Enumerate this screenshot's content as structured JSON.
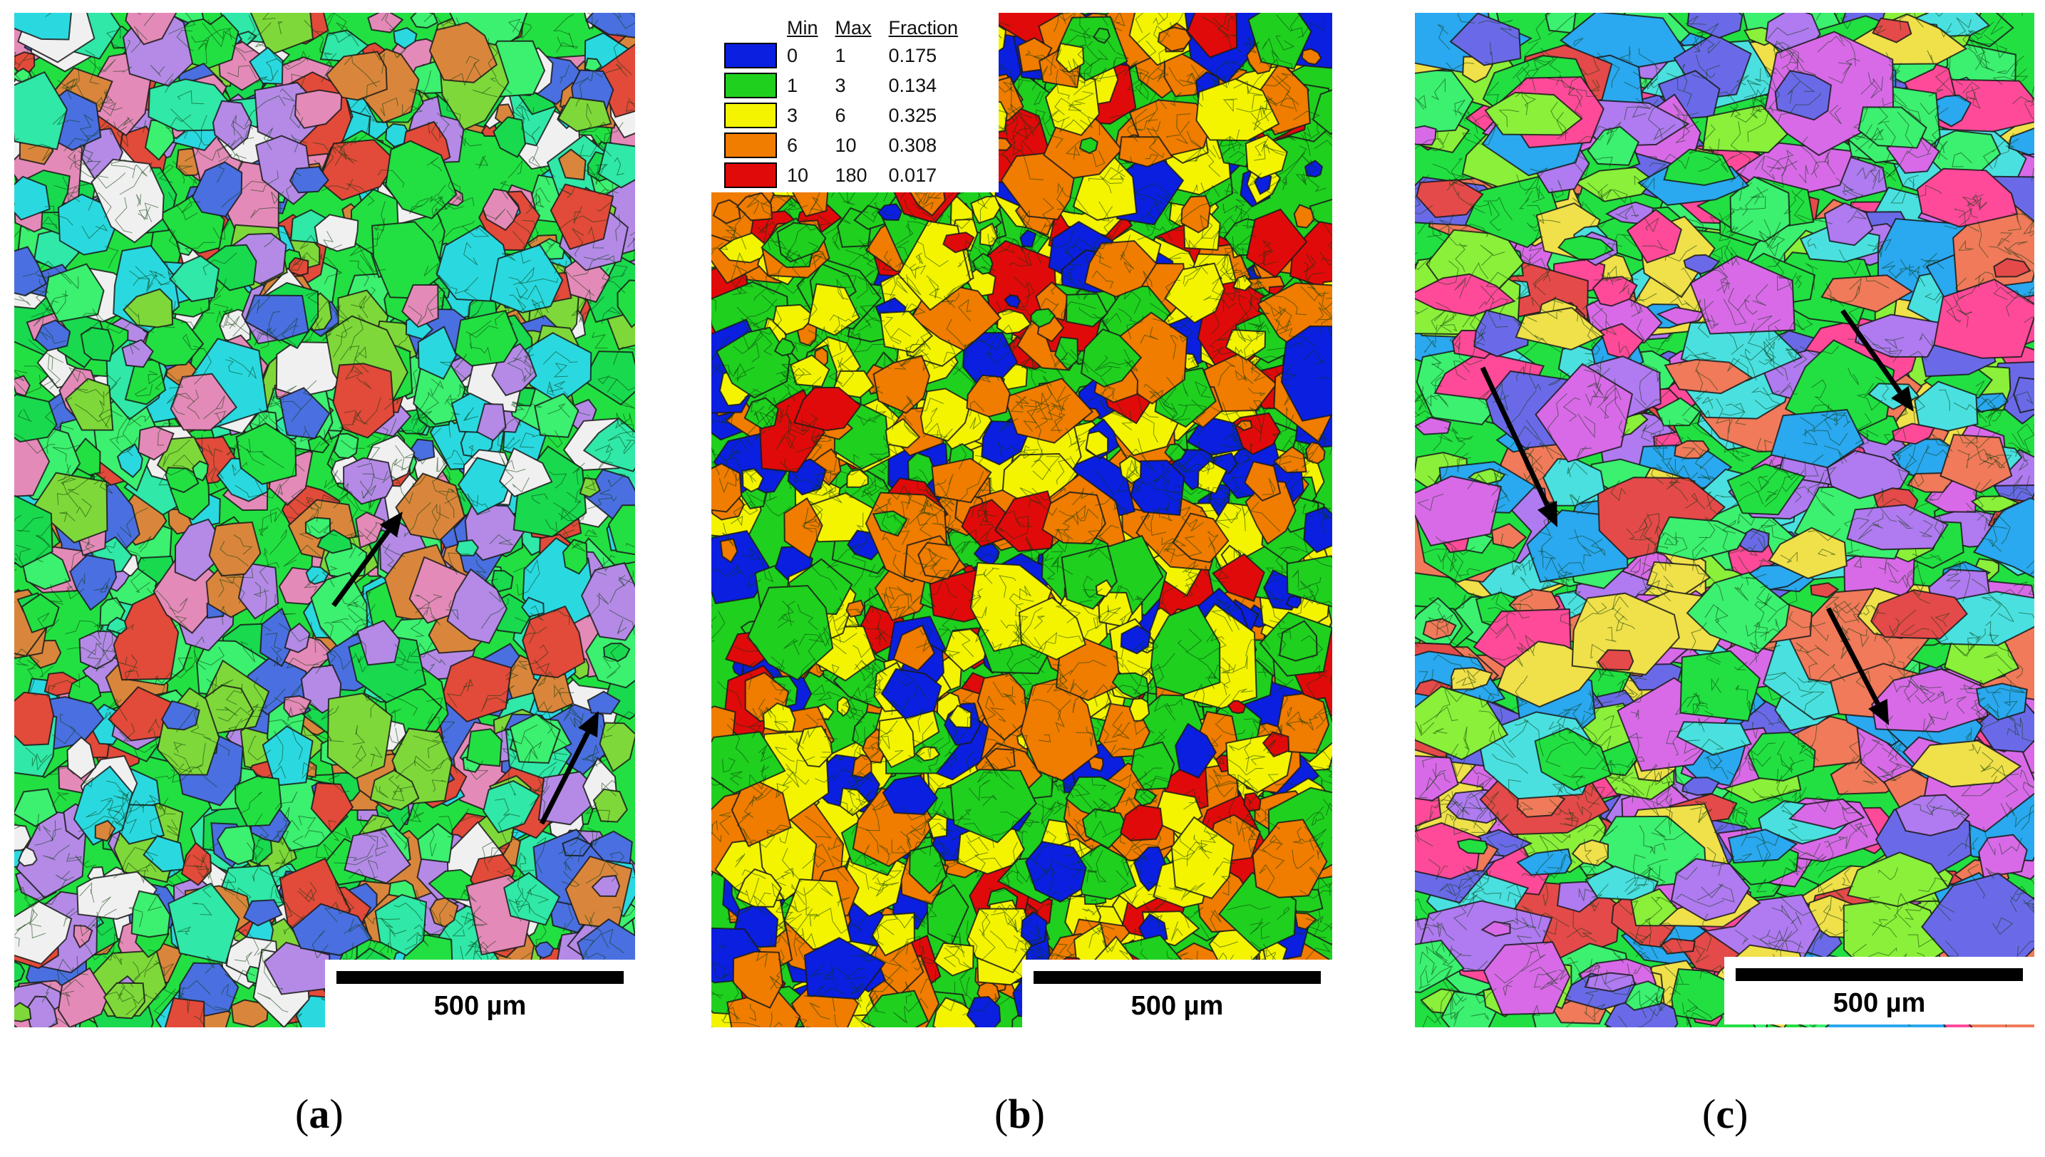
{
  "figure": {
    "panels": [
      {
        "id": "a",
        "caption_open": "(",
        "caption_letter": "a",
        "caption_close": ")",
        "scale_bar_label": "500 µm",
        "map_type": "orientation map",
        "palette": [
          "#22e042",
          "#3cf070",
          "#19d94f",
          "#30e8a8",
          "#2ad9e0",
          "#e24a3a",
          "#d9863c",
          "#7fd83a",
          "#b48ae6",
          "#e48ab8",
          "#4a6fe0",
          "#f0f0f0"
        ],
        "arrow_count": 2,
        "arrow_direction": "up-right"
      },
      {
        "id": "b",
        "caption_open": "(",
        "caption_letter": "b",
        "caption_close": ")",
        "scale_bar_label": "500 µm",
        "map_type": "misorientation map",
        "legend": {
          "headers": {
            "min": "Min",
            "max": "Max",
            "fraction": "Fraction"
          },
          "rows": [
            {
              "color": "#0a1fe0",
              "min": "0",
              "max": "1",
              "fraction": "0.175"
            },
            {
              "color": "#1fd01f",
              "min": "1",
              "max": "3",
              "fraction": "0.134"
            },
            {
              "color": "#f4f400",
              "min": "3",
              "max": "6",
              "fraction": "0.325"
            },
            {
              "color": "#f07c00",
              "min": "6",
              "max": "10",
              "fraction": "0.308"
            },
            {
              "color": "#e00a0a",
              "min": "10",
              "max": "180",
              "fraction": "0.017"
            }
          ]
        }
      },
      {
        "id": "c",
        "caption_open": "(",
        "caption_letter": "c",
        "caption_close": ")",
        "scale_bar_label": "500 µm",
        "map_type": "orientation map",
        "palette": [
          "#22e042",
          "#3cf070",
          "#ff4a9a",
          "#e44a4a",
          "#f07a5a",
          "#d86ae8",
          "#b07af0",
          "#4ae0e0",
          "#2aa8f0",
          "#6a6ae8",
          "#f0e04a",
          "#8af03a"
        ],
        "arrow_count": 3,
        "arrow_direction": "down-right"
      }
    ]
  }
}
